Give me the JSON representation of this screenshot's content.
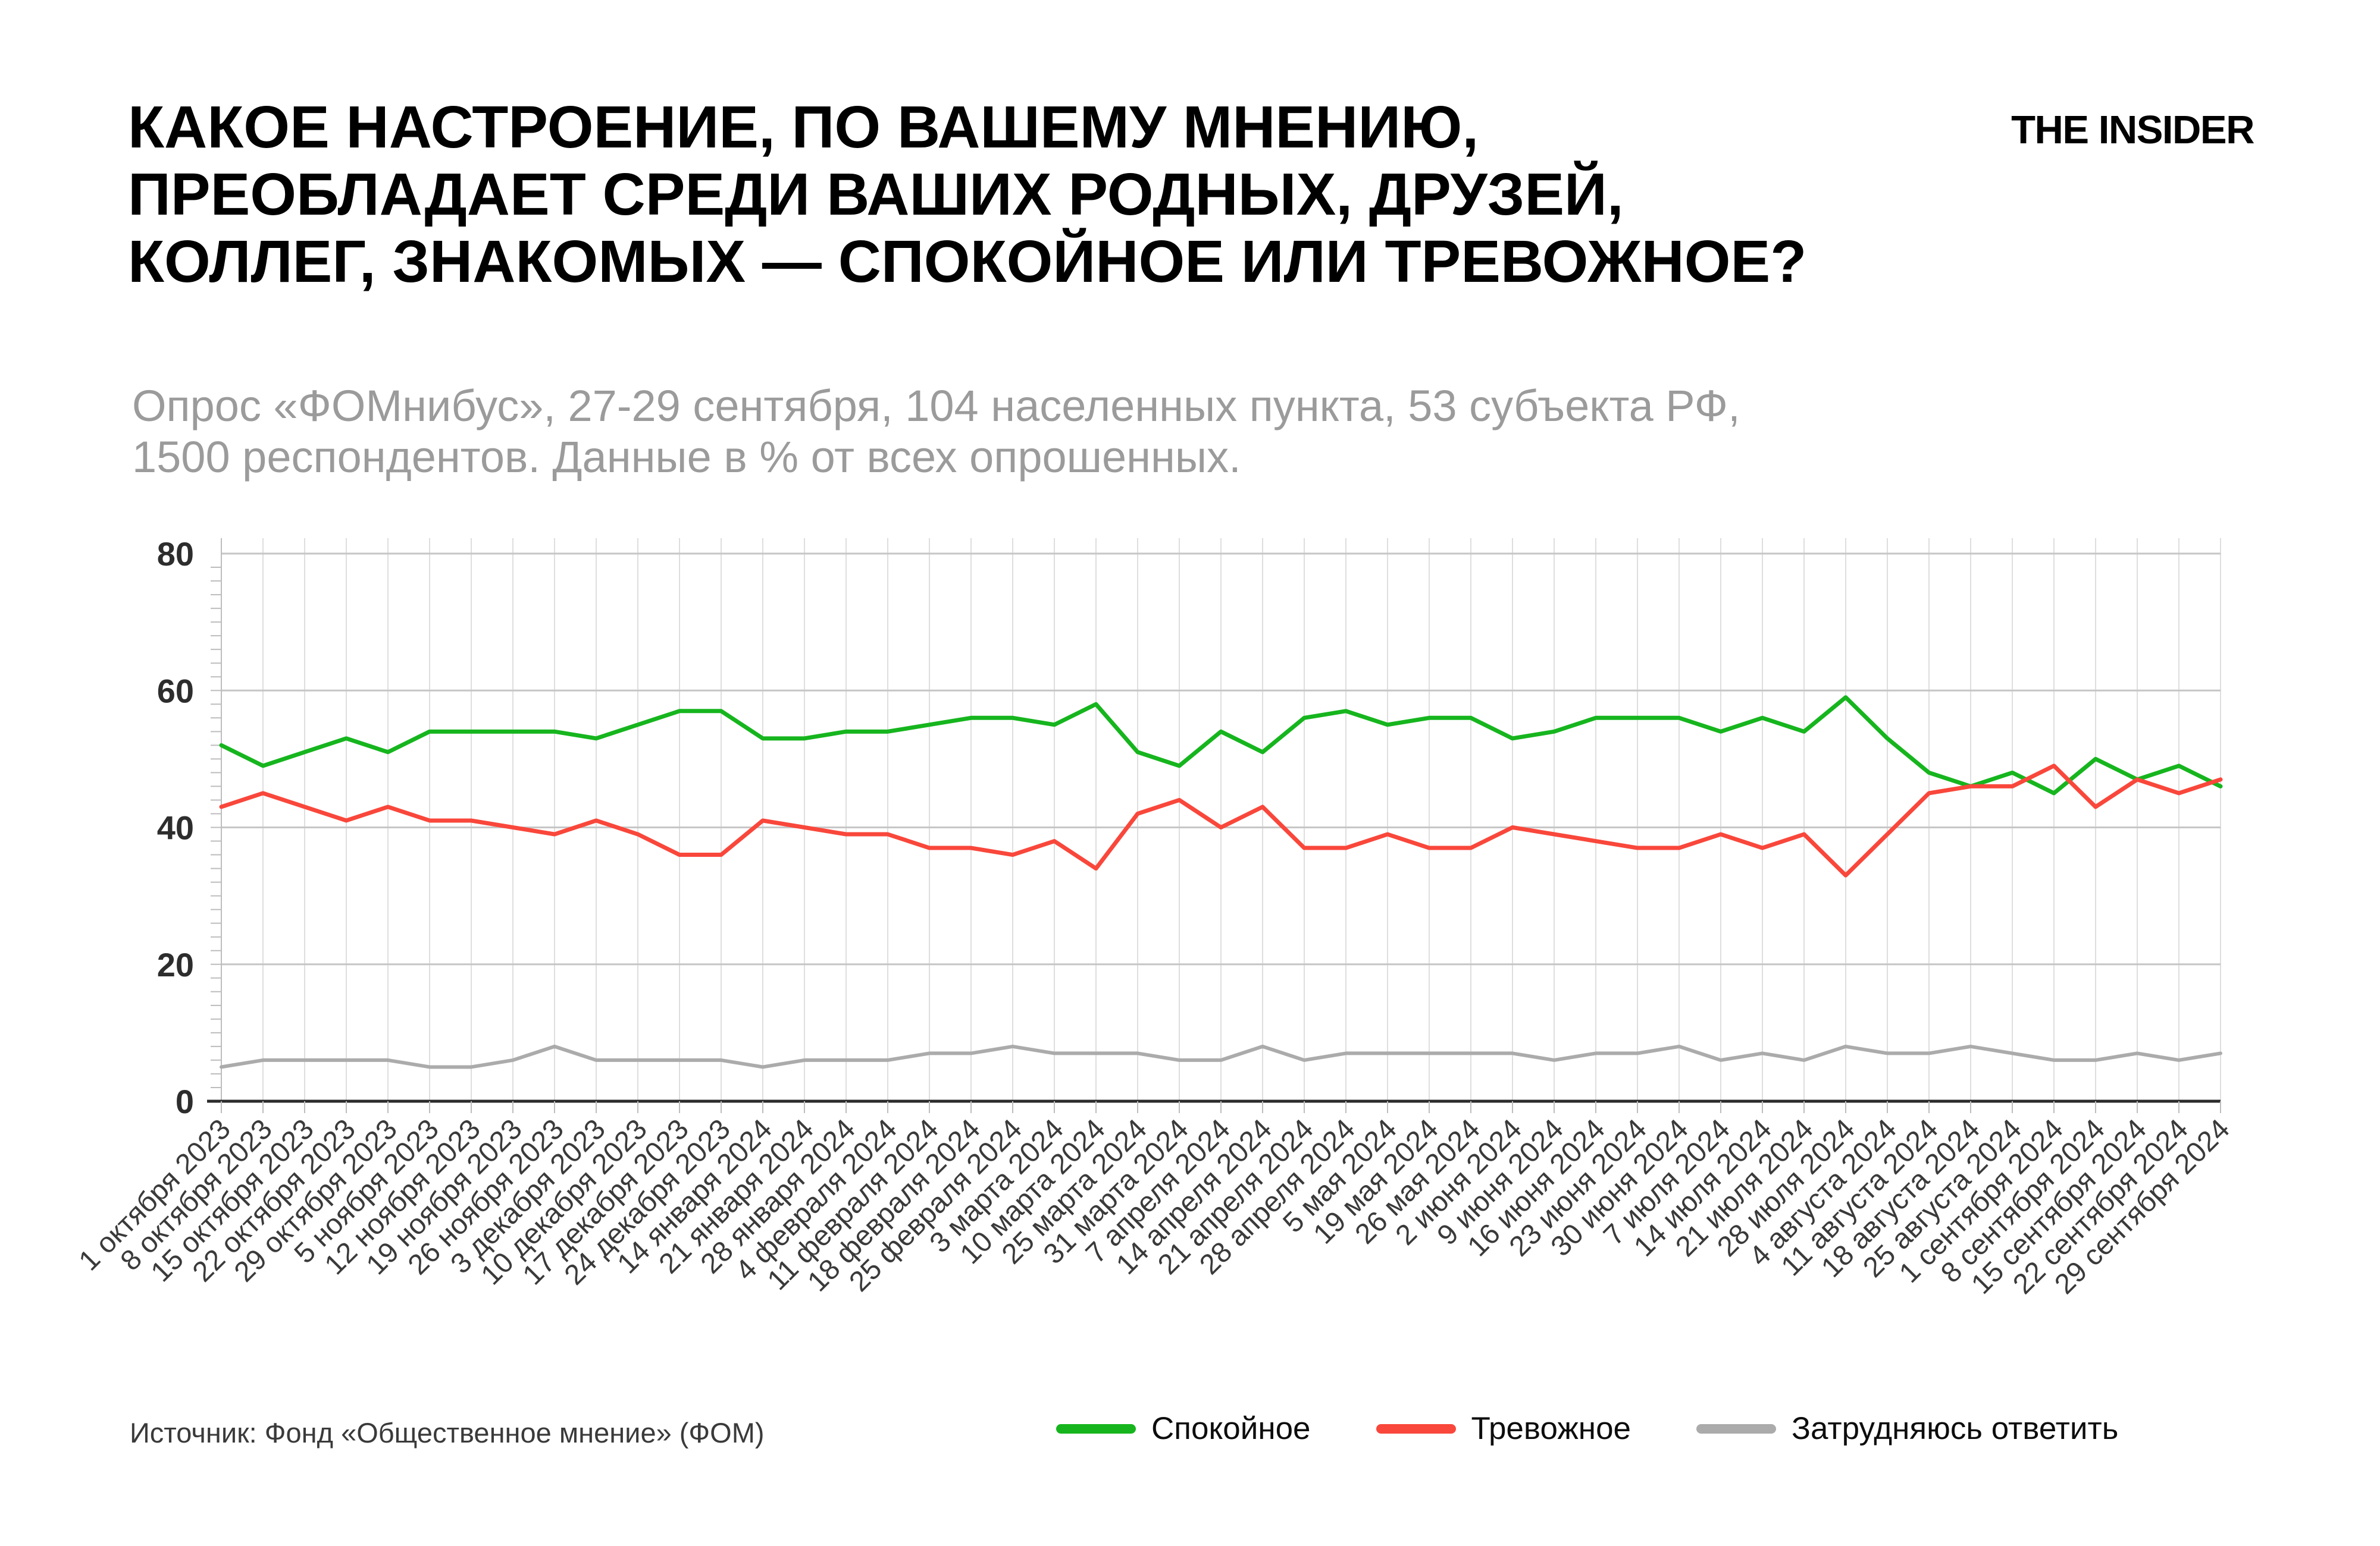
{
  "header": {
    "title_lines": [
      "КАКОЕ НАСТРОЕНИЕ, ПО ВАШЕМУ МНЕНИЮ,",
      "ПРЕОБЛАДАЕТ СРЕДИ ВАШИХ РОДНЫХ, ДРУЗЕЙ,",
      "КОЛЛЕГ, ЗНАКОМЫХ — СПОКОЙНОЕ ИЛИ ТРЕВОЖНОЕ?"
    ],
    "logo": "THE INSIDER",
    "subtitle_lines": [
      "Опрос «ФОМнибус», 27-29 сентября, 104 населенных пункта, 53 субъекта РФ,",
      "1500 респондентов. Данные в % от всех опрошенных."
    ]
  },
  "source": {
    "label": "Источник: Фонд «Общественное мнение» (ФОМ)"
  },
  "chart_data": {
    "type": "line",
    "title": "Какое настроение преобладает среди ваших родных, друзей, коллег, знакомых — спокойное или тревожное?",
    "xlabel": "",
    "ylabel": "",
    "ylim": [
      0,
      80
    ],
    "yticks": [
      0,
      20,
      40,
      60,
      80
    ],
    "grid": true,
    "legend_position": "bottom",
    "xlabel_rotation": 45,
    "categories": [
      "1 октября 2023",
      "8 октября 2023",
      "15 октября 2023",
      "22 октября 2023",
      "29 октября 2023",
      "5 ноября 2023",
      "12 ноября 2023",
      "19 ноября 2023",
      "26 ноября 2023",
      "3 декабря 2023",
      "10 декабря 2023",
      "17 декабря 2023",
      "24 декабря 2023",
      "14 января 2024",
      "21 января 2024",
      "28 января 2024",
      "4 февраля 2024",
      "11 февраля 2024",
      "18 февраля 2024",
      "25 февраля 2024",
      "3 марта 2024",
      "10 марта 2024",
      "25 марта 2024",
      "31 марта 2024",
      "7 апреля 2024",
      "14 апреля 2024",
      "21 апреля 2024",
      "28 апреля 2024",
      "5 мая 2024",
      "19 мая 2024",
      "26 мая 2024",
      "2 июня 2024",
      "9 июня 2024",
      "16 июня 2024",
      "23 июня 2024",
      "30 июня 2024",
      "7 июля 2024",
      "14 июля 2024",
      "21 июля 2024",
      "28 июля 2024",
      "4 августа 2024",
      "11 августа 2024",
      "18 августа 2024",
      "25 августа 2024",
      "1 сентября 2024",
      "8 сентября 2024",
      "15 сентября 2024",
      "22 сентября 2024",
      "29 сентября 2024"
    ],
    "series": [
      {
        "name": "Спокойное",
        "color": "#16b51e",
        "values": [
          52,
          49,
          51,
          53,
          51,
          54,
          54,
          54,
          54,
          53,
          55,
          57,
          57,
          53,
          53,
          54,
          54,
          55,
          56,
          56,
          55,
          58,
          51,
          49,
          54,
          51,
          56,
          57,
          55,
          56,
          56,
          53,
          54,
          56,
          56,
          56,
          54,
          56,
          54,
          59,
          53,
          48,
          46,
          48,
          45,
          50,
          47,
          49,
          46
        ]
      },
      {
        "name": "Тревожное",
        "color": "#f9473b",
        "values": [
          43,
          45,
          43,
          41,
          43,
          41,
          41,
          40,
          39,
          41,
          39,
          36,
          36,
          41,
          40,
          39,
          39,
          37,
          37,
          36,
          38,
          34,
          42,
          44,
          40,
          43,
          37,
          37,
          39,
          37,
          37,
          40,
          39,
          38,
          37,
          37,
          39,
          37,
          39,
          33,
          39,
          45,
          46,
          46,
          49,
          43,
          47,
          45,
          47
        ]
      },
      {
        "name": "Затрудняюсь ответить",
        "color": "#ababab",
        "values": [
          5,
          6,
          6,
          6,
          6,
          5,
          5,
          6,
          8,
          6,
          6,
          6,
          6,
          5,
          6,
          6,
          6,
          7,
          7,
          8,
          7,
          7,
          7,
          6,
          6,
          8,
          6,
          7,
          7,
          7,
          7,
          7,
          6,
          7,
          7,
          8,
          6,
          7,
          6,
          8,
          7,
          7,
          8,
          7,
          6,
          6,
          7,
          6,
          7
        ]
      }
    ]
  }
}
